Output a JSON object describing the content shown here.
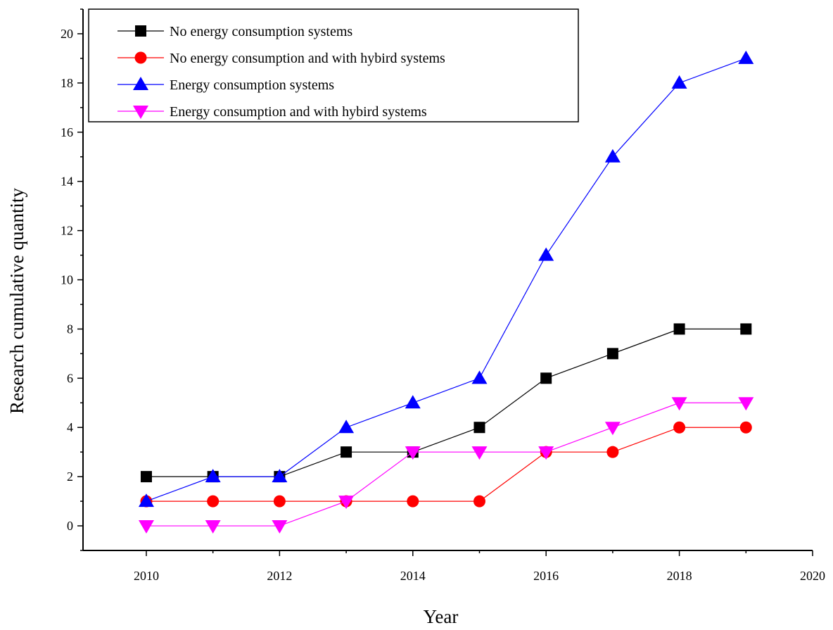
{
  "chart_data": {
    "type": "line",
    "title": "",
    "xlabel": "Year",
    "ylabel": "Research cumulative quantity",
    "xlim": [
      2009.05,
      2020
    ],
    "ylim": [
      -1,
      21
    ],
    "xticks": [
      2010,
      2012,
      2014,
      2016,
      2018,
      2020
    ],
    "xtick_labels": [
      "2010",
      "2012",
      "2014",
      "2016",
      "2018",
      "2020"
    ],
    "yticks": [
      0,
      2,
      4,
      6,
      8,
      10,
      12,
      14,
      16,
      18,
      20
    ],
    "ytick_labels": [
      "0",
      "2",
      "4",
      "6",
      "8",
      "10",
      "12",
      "14",
      "16",
      "18",
      "20"
    ],
    "grid": false,
    "legend_position": "top-left",
    "x": [
      2010,
      2011,
      2012,
      2013,
      2014,
      2015,
      2016,
      2017,
      2018,
      2019
    ],
    "series": [
      {
        "name": "No energy consumption systems",
        "color": "#000000",
        "marker": "square",
        "values": [
          2,
          2,
          2,
          3,
          3,
          4,
          6,
          7,
          8,
          8
        ]
      },
      {
        "name": "No energy consumption and with hybird systems",
        "color": "#ff0000",
        "marker": "circle",
        "values": [
          1,
          1,
          1,
          1,
          1,
          1,
          3,
          3,
          4,
          4
        ]
      },
      {
        "name": "Energy consumption systems",
        "color": "#0000ff",
        "marker": "triangle-up",
        "values": [
          1,
          2,
          2,
          4,
          5,
          6,
          11,
          15,
          18,
          19
        ]
      },
      {
        "name": "Energy consumption and with hybird systems",
        "color": "#ff00ff",
        "marker": "triangle-down",
        "values": [
          0,
          0,
          0,
          1,
          3,
          3,
          3,
          4,
          5,
          5
        ]
      }
    ]
  }
}
